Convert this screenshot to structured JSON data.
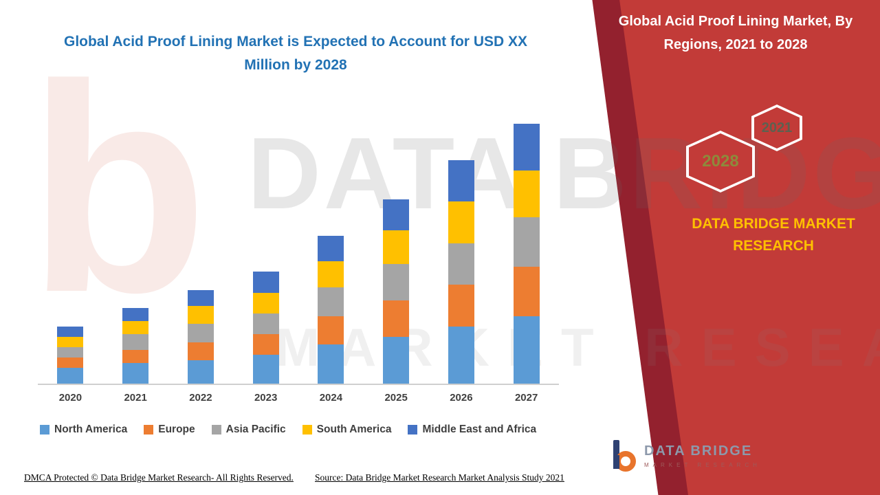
{
  "page": {
    "left_title": "Global Acid Proof Lining Market is Expected to Account for USD XX Million by 2028",
    "right_title": "Global Acid Proof Lining Market, By Regions, 2021 to 2028"
  },
  "hex_badges": {
    "back": "2028",
    "front": "2021"
  },
  "brand_gold": "DATA BRIDGE MARKET RESEARCH",
  "watermark": {
    "line1": "DATA BRIDGE",
    "line2": "MARKET RESEARCH",
    "logo_glyph": "b"
  },
  "logo": {
    "name": "DATA BRIDGE",
    "subtitle": "MARKET RESEARCH"
  },
  "footer": {
    "dmca": "DMCA Protected © Data Bridge Market Research- All Rights Reserved.",
    "source": "Source: Data Bridge Market Research Market Analysis Study 2021"
  },
  "colors": {
    "accent_red": "#C23B38",
    "accent_red_dark": "#93212E",
    "title_blue": "#2272B4",
    "gold": "#FFC000"
  },
  "chart_data": {
    "type": "bar",
    "stacked": true,
    "title": "Global Acid Proof Lining Market is Expected to Account for USD XX Million by 2028",
    "categories": [
      "2020",
      "2021",
      "2022",
      "2023",
      "2024",
      "2025",
      "2026",
      "2027"
    ],
    "series": [
      {
        "name": "North America",
        "color": "#5B9BD5",
        "values": [
          6,
          8,
          9,
          11,
          15,
          18,
          22,
          26
        ]
      },
      {
        "name": "Europe",
        "color": "#ED7D31",
        "values": [
          4,
          5,
          7,
          8,
          11,
          14,
          16,
          19
        ]
      },
      {
        "name": "Asia Pacific",
        "color": "#A5A5A5",
        "values": [
          4,
          6,
          7,
          8,
          11,
          14,
          16,
          19
        ]
      },
      {
        "name": "South America",
        "color": "#FFC000",
        "values": [
          4,
          5,
          7,
          8,
          10,
          13,
          16,
          18
        ]
      },
      {
        "name": "Middle East and Africa",
        "color": "#4472C4",
        "values": [
          4,
          5,
          6,
          8,
          10,
          12,
          16,
          18
        ]
      }
    ],
    "xlabel": "",
    "ylabel": "",
    "ylim": [
      0,
      100
    ],
    "grid": false,
    "legend_position": "bottom",
    "value_axis_labels_visible": false
  }
}
